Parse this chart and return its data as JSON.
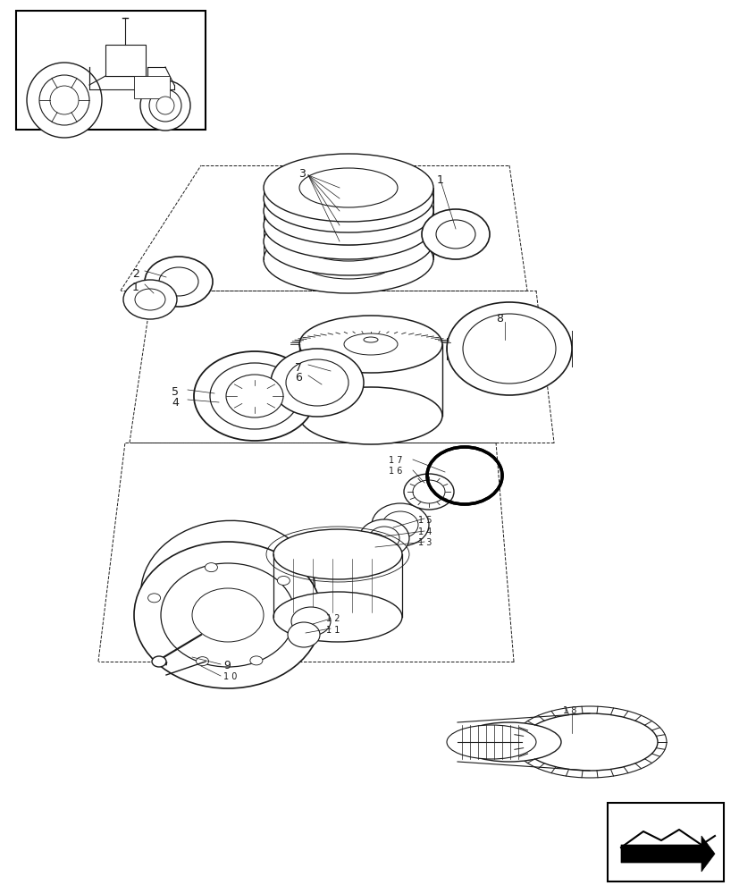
{
  "bg_color": "#ffffff",
  "line_color": "#1a1a1a",
  "fig_width": 8.28,
  "fig_height": 10.0,
  "dpi": 100,
  "xlim": [
    0,
    828
  ],
  "ylim": [
    0,
    1000
  ]
}
